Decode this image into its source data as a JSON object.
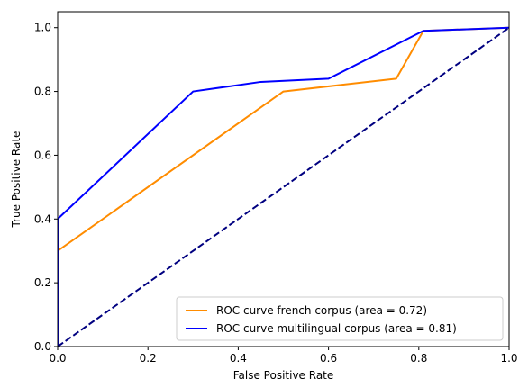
{
  "chart_data": {
    "type": "line",
    "title": "",
    "xlabel": "False Positive Rate",
    "ylabel": "True Positive Rate",
    "xlim": [
      0.0,
      1.0
    ],
    "ylim": [
      0.0,
      1.05
    ],
    "xticks": [
      "0.0",
      "0.2",
      "0.4",
      "0.6",
      "0.8",
      "1.0"
    ],
    "yticks": [
      "0.0",
      "0.2",
      "0.4",
      "0.6",
      "0.8",
      "1.0"
    ],
    "xtick_values": [
      0.0,
      0.2,
      0.4,
      0.6,
      0.8,
      1.0
    ],
    "ytick_values": [
      0.0,
      0.2,
      0.4,
      0.6,
      0.8,
      1.0
    ],
    "grid": false,
    "legend_position": "bottom-right",
    "series": [
      {
        "name": "ROC curve french corpus (area = 0.72)",
        "color": "#ff8c00",
        "style": "solid",
        "x": [
          0.0,
          0.0,
          0.5,
          0.75,
          0.81,
          1.0
        ],
        "y": [
          0.0,
          0.3,
          0.8,
          0.84,
          0.99,
          1.0
        ]
      },
      {
        "name": "ROC curve multilingual corpus (area = 0.81)",
        "color": "#0000ff",
        "style": "solid",
        "x": [
          0.0,
          0.0,
          0.3,
          0.45,
          0.6,
          0.81,
          1.0
        ],
        "y": [
          0.0,
          0.4,
          0.8,
          0.83,
          0.84,
          0.99,
          1.0
        ]
      },
      {
        "color": "#000080",
        "style": "dashed",
        "x": [
          0.0,
          1.0
        ],
        "y": [
          0.0,
          1.0
        ]
      }
    ]
  }
}
